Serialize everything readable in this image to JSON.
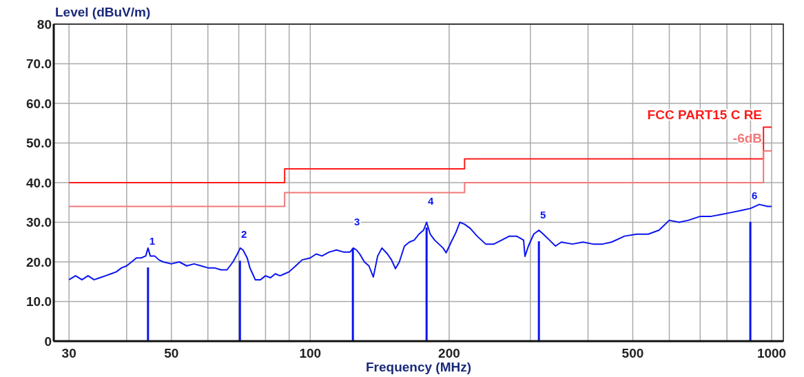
{
  "chart_data": {
    "type": "line",
    "ylabel": "Level (dBuV/m)",
    "xlabel": "Frequency (MHz)",
    "log": "x",
    "grid": true,
    "legend": false,
    "xlim": [
      27.8,
      1060
    ],
    "xticks": [
      30,
      {
        "value": 40,
        "label": null
      },
      50,
      {
        "value": 60,
        "label": null
      },
      {
        "value": 70,
        "label": null
      },
      {
        "value": 80,
        "label": null
      },
      {
        "value": 90,
        "label": null
      },
      100,
      200,
      {
        "value": 300,
        "label": null
      },
      {
        "value": 400,
        "label": null
      },
      500,
      {
        "value": 600,
        "label": null
      },
      {
        "value": 700,
        "label": null
      },
      {
        "value": 800,
        "label": null
      },
      {
        "value": 900,
        "label": null
      },
      1000
    ],
    "ylim": [
      0,
      80
    ],
    "yticks": [
      {
        "value": 0,
        "label": "0"
      },
      {
        "value": 10,
        "label": "10.0"
      },
      {
        "value": 20,
        "label": "20.0"
      },
      {
        "value": 30,
        "label": "30.0"
      },
      {
        "value": 40,
        "label": "40.0"
      },
      {
        "value": 50,
        "label": "50.0"
      },
      {
        "value": 60,
        "label": "60.0"
      },
      {
        "value": 70,
        "label": "70.0"
      },
      {
        "value": 80,
        "label": "80"
      }
    ],
    "series": [
      {
        "name": "FCC PART15 C RE",
        "color": "#ff1a1a",
        "type": "step",
        "x": [
          30,
          88,
          88,
          216,
          216,
          960,
          960,
          1000
        ],
        "values": [
          40,
          40,
          43.5,
          43.5,
          46,
          46,
          54,
          54
        ]
      },
      {
        "name": "-6dB",
        "color": "#f07878",
        "type": "step",
        "x": [
          30,
          88,
          88,
          216,
          216,
          960,
          960,
          1000
        ],
        "values": [
          34,
          34,
          37.5,
          37.5,
          40,
          40,
          48,
          48
        ]
      },
      {
        "color": "#0a14f0",
        "x": [
          30,
          31,
          32,
          33,
          34,
          35,
          36,
          37,
          38,
          39,
          40,
          41,
          42,
          43,
          44,
          44.5,
          45,
          46,
          47,
          48,
          50,
          52,
          54,
          56,
          58,
          60,
          62,
          64,
          66,
          68,
          69.5,
          70.5,
          71.5,
          73,
          74,
          75,
          76,
          78,
          80,
          82,
          84,
          86,
          88,
          90,
          93,
          96,
          100,
          103,
          106,
          110,
          114,
          118,
          122,
          124,
          126,
          128,
          131,
          134,
          137,
          140,
          143,
          147,
          150,
          153,
          156,
          160,
          164,
          168,
          172,
          176,
          178.7,
          182,
          186,
          190,
          194,
          197,
          202,
          207,
          211,
          216,
          222,
          230,
          240,
          250,
          260,
          270,
          280,
          290,
          292,
          297,
          305,
          313,
          320,
          330,
          340,
          350,
          370,
          390,
          410,
          430,
          450,
          480,
          510,
          540,
          570,
          600,
          630,
          660,
          700,
          740,
          780,
          820,
          860,
          900,
          940,
          980,
          1000
        ],
        "values": [
          15.5,
          16.5,
          15.5,
          16.5,
          15.5,
          16,
          16.5,
          17,
          17.5,
          18.5,
          19,
          20,
          21,
          21,
          21.5,
          23.5,
          21.5,
          21.5,
          20.5,
          20,
          19.5,
          20,
          19,
          19.5,
          19,
          18.5,
          18.5,
          18,
          18,
          20,
          22,
          23.5,
          23,
          21,
          18.5,
          17,
          15.5,
          15.5,
          16.5,
          16,
          17,
          16.5,
          17,
          17.5,
          19,
          20.5,
          21,
          22,
          21.5,
          22.5,
          23,
          22.5,
          22.5,
          23.5,
          23,
          22,
          20,
          19,
          16.2,
          21.5,
          23.5,
          22,
          20.5,
          18.3,
          20,
          24,
          25,
          25.5,
          27,
          28,
          30,
          27,
          25.5,
          24.5,
          23.5,
          22.3,
          25,
          27.5,
          30,
          29.5,
          28.5,
          26.5,
          24.5,
          24.5,
          25.5,
          26.5,
          26.5,
          25.5,
          21.4,
          24,
          27,
          28,
          27,
          25.5,
          24,
          25,
          24.5,
          25,
          24.5,
          24.5,
          25,
          26.5,
          27,
          27,
          28,
          30.5,
          30,
          30.5,
          31.5,
          31.5,
          32,
          32.5,
          33,
          33.5,
          34.5,
          34,
          34
        ]
      },
      {
        "color": "#0a14f0",
        "type": "bar",
        "x": [
          44.5,
          70.4,
          123.7,
          178.7,
          313,
          899
        ],
        "values": [
          18.6,
          20.3,
          23.5,
          28.7,
          25.2,
          30.1
        ]
      }
    ],
    "annotations": [
      {
        "text": "1",
        "x": 44.5,
        "y": 18.6
      },
      {
        "text": "2",
        "x": 70.4,
        "y": 20.3
      },
      {
        "text": "3",
        "x": 123.7,
        "y": 23.5
      },
      {
        "text": "4",
        "x": 178.7,
        "y": 28.7
      },
      {
        "text": "5",
        "x": 313,
        "y": 25.2
      },
      {
        "text": "6",
        "x": 899,
        "y": 30.1
      }
    ]
  }
}
